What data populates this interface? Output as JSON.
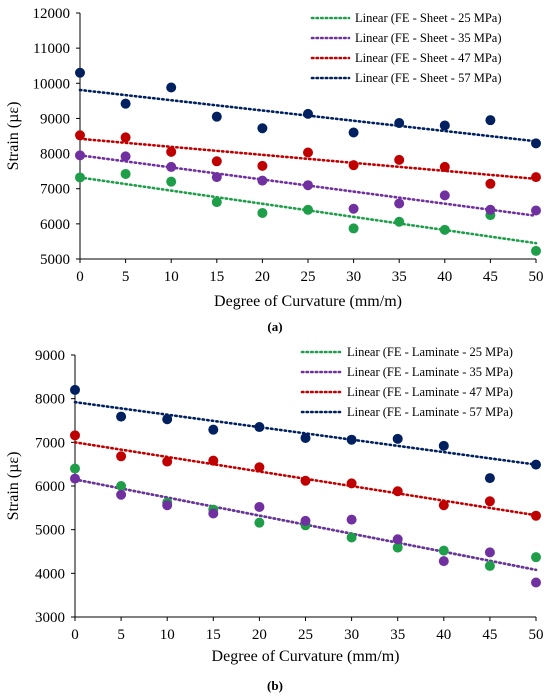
{
  "chart_data": [
    {
      "type": "scatter",
      "sub_label": "(a)",
      "xlabel": "Degree of Curvature (mm/m)",
      "ylabel": "Strain (µε)",
      "xlim": [
        0,
        50
      ],
      "ylim": [
        5000,
        12000
      ],
      "x_ticks": [
        0,
        5,
        10,
        15,
        20,
        25,
        30,
        35,
        40,
        45,
        50
      ],
      "y_ticks": [
        5000,
        6000,
        7000,
        8000,
        9000,
        10000,
        11000,
        12000
      ],
      "legend_position": "top-right",
      "grid": false,
      "x": [
        0,
        5,
        10,
        15,
        20,
        25,
        30,
        35,
        40,
        45,
        50
      ],
      "series": [
        {
          "color": "#1f9e4a",
          "values": [
            7320,
            7420,
            7200,
            6620,
            6310,
            6400,
            5870,
            6060,
            5830,
            6250,
            5230
          ],
          "trend_start": 7320,
          "trend_end": 5450,
          "legend": "Linear (FE - Sheet - 25 MPa)"
        },
        {
          "color": "#7030a0",
          "values": [
            7950,
            7920,
            7620,
            7330,
            7230,
            7100,
            6430,
            6580,
            6810,
            6400,
            6380
          ],
          "trend_start": 7950,
          "trend_end": 6230,
          "legend": "Linear (FE - Sheet - 35 MPa)"
        },
        {
          "color": "#c00000",
          "values": [
            8520,
            8460,
            8050,
            7780,
            7650,
            8030,
            7670,
            7820,
            7620,
            7140,
            7330
          ],
          "trend_start": 8420,
          "trend_end": 7280,
          "legend": "Linear (FE - Sheet - 47 MPa)"
        },
        {
          "color": "#002060",
          "values": [
            10300,
            9420,
            9880,
            9050,
            8720,
            9130,
            8600,
            8870,
            8800,
            8950,
            8290
          ],
          "trend_start": 9810,
          "trend_end": 8350,
          "legend": "Linear (FE - Sheet - 57 MPa)"
        }
      ]
    },
    {
      "type": "scatter",
      "sub_label": "(b)",
      "xlabel": "Degree of Curvature (mm/m)",
      "ylabel": "Strain (µε)",
      "xlim": [
        0,
        50
      ],
      "ylim": [
        3000,
        9000
      ],
      "x_ticks": [
        0,
        5,
        10,
        15,
        20,
        25,
        30,
        35,
        40,
        45,
        50
      ],
      "y_ticks": [
        3000,
        4000,
        5000,
        6000,
        7000,
        8000,
        9000
      ],
      "legend_position": "top-right",
      "grid": false,
      "x": [
        0,
        5,
        10,
        15,
        20,
        25,
        30,
        35,
        40,
        45,
        50
      ],
      "series": [
        {
          "color": "#1f9e4a",
          "values": [
            6400,
            6000,
            5620,
            5460,
            5160,
            5100,
            4820,
            4590,
            4520,
            4170,
            4370
          ],
          "trend_start": 6150,
          "trend_end": 4080,
          "legend": "Linear (FE - Laminate - 25 MPa)"
        },
        {
          "color": "#7030a0",
          "values": [
            6170,
            5800,
            5560,
            5370,
            5520,
            5200,
            5230,
            4780,
            4280,
            4480,
            3790
          ],
          "trend_start": 6150,
          "trend_end": 4080,
          "legend": "Linear (FE - Laminate - 35 MPa)"
        },
        {
          "color": "#c00000",
          "values": [
            7160,
            6680,
            6560,
            6580,
            6430,
            6120,
            6060,
            5880,
            5560,
            5650,
            5320
          ],
          "trend_start": 7000,
          "trend_end": 5330,
          "legend": "Linear (FE - Laminate - 47 MPa)"
        },
        {
          "color": "#002060",
          "values": [
            8200,
            7590,
            7530,
            7290,
            7350,
            7100,
            7060,
            7080,
            6920,
            6180,
            6490
          ],
          "trend_start": 7920,
          "trend_end": 6490,
          "legend": "Linear (FE - Laminate - 57 MPa)"
        }
      ]
    }
  ]
}
